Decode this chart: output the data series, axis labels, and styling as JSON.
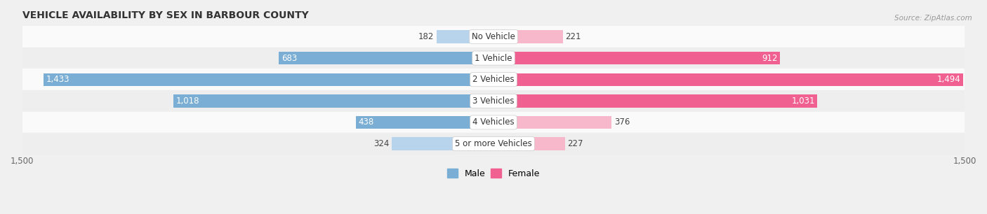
{
  "title": "VEHICLE AVAILABILITY BY SEX IN BARBOUR COUNTY",
  "source": "Source: ZipAtlas.com",
  "categories": [
    "No Vehicle",
    "1 Vehicle",
    "2 Vehicles",
    "3 Vehicles",
    "4 Vehicles",
    "5 or more Vehicles"
  ],
  "male_values": [
    182,
    683,
    1433,
    1018,
    438,
    324
  ],
  "female_values": [
    221,
    912,
    1494,
    1031,
    376,
    227
  ],
  "male_color_small": "#b8d4ed",
  "male_color_large": "#7baed4",
  "female_color_small": "#f7b8cc",
  "female_color_large": "#f06090",
  "bar_height": 0.6,
  "xlim": 1500,
  "bg_color": "#f0f0f0",
  "row_bg_light": "#fafafa",
  "row_bg_dark": "#eeeeee",
  "title_fontsize": 10,
  "label_fontsize": 8.5,
  "tick_fontsize": 8.5,
  "source_fontsize": 7.5,
  "legend_fontsize": 9,
  "small_threshold": 400
}
